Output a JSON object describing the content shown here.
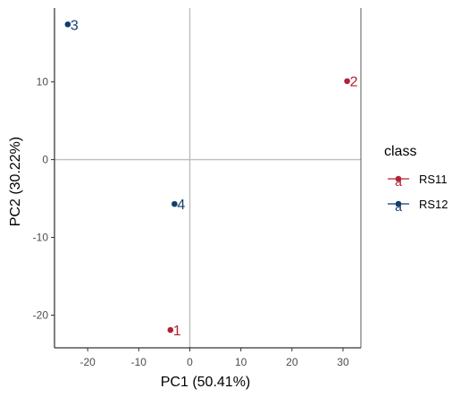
{
  "chart_data": {
    "type": "scatter",
    "title": "",
    "xlabel": "PC1 (50.41%)",
    "ylabel": "PC2 (30.22%)",
    "xlim": [
      -26.5,
      33.5
    ],
    "ylim": [
      -24.2,
      19.5
    ],
    "x_ticks": [
      -20,
      -10,
      0,
      10,
      20,
      30
    ],
    "y_ticks": [
      -20,
      -10,
      0,
      10
    ],
    "reference_lines": {
      "x": 0,
      "y": 0
    },
    "grid": false,
    "legend": {
      "title": "class",
      "placement": "right",
      "entries": [
        {
          "name": "RS11",
          "color": "#B22234",
          "key_glyph": "a"
        },
        {
          "name": "RS12",
          "color": "#123E6E",
          "key_glyph": "a"
        }
      ]
    },
    "series": [
      {
        "name": "RS11",
        "color": "#B22234",
        "points": [
          {
            "label": "2",
            "x": 30.8,
            "y": 10.1
          },
          {
            "label": "1",
            "x": -3.8,
            "y": -21.9
          }
        ]
      },
      {
        "name": "RS12",
        "color": "#123E6E",
        "points": [
          {
            "label": "3",
            "x": -23.9,
            "y": 17.4
          },
          {
            "label": "4",
            "x": -3.0,
            "y": -5.7
          }
        ]
      }
    ]
  }
}
